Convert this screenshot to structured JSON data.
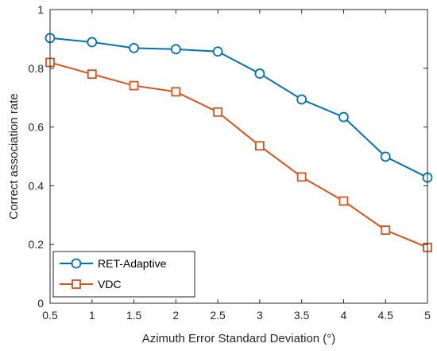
{
  "chart_data": {
    "type": "line",
    "xlabel": "Azimuth Error Standard Deviation (°)",
    "ylabel": "Correct association rate",
    "xlim": [
      0.5,
      5
    ],
    "ylim": [
      0,
      1
    ],
    "x_ticks": [
      "0.5",
      "1",
      "1.5",
      "2",
      "2.5",
      "3",
      "3.5",
      "4",
      "4.5",
      "5"
    ],
    "y_ticks": [
      "0",
      "0.2",
      "0.4",
      "0.6",
      "0.8",
      "1"
    ],
    "grid": false,
    "legend_position": "bottom-left",
    "x": [
      0.5,
      1,
      1.5,
      2,
      2.5,
      3,
      3.5,
      4,
      4.5,
      5
    ],
    "series": [
      {
        "name": "RET-Adaptive",
        "color": "#0072BD",
        "marker": "circle",
        "values": [
          0.903,
          0.889,
          0.869,
          0.865,
          0.857,
          0.782,
          0.694,
          0.634,
          0.499,
          0.428
        ]
      },
      {
        "name": "VDC",
        "color": "#D95319",
        "marker": "square",
        "values": [
          0.82,
          0.78,
          0.741,
          0.72,
          0.651,
          0.536,
          0.43,
          0.348,
          0.249,
          0.19
        ]
      }
    ]
  }
}
